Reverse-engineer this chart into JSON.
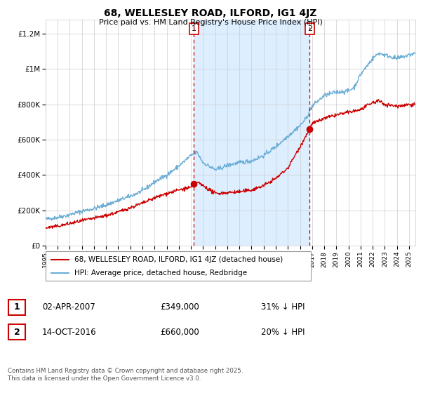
{
  "title": "68, WELLESLEY ROAD, ILFORD, IG1 4JZ",
  "subtitle": "Price paid vs. HM Land Registry's House Price Index (HPI)",
  "ylabel_ticks": [
    "£0",
    "£200K",
    "£400K",
    "£600K",
    "£800K",
    "£1M",
    "£1.2M"
  ],
  "ytick_values": [
    0,
    200000,
    400000,
    600000,
    800000,
    1000000,
    1200000
  ],
  "ylim": [
    0,
    1280000
  ],
  "xlim_start": 1995,
  "xlim_end": 2025.5,
  "sale1_date": 2007.25,
  "sale1_price": 349000,
  "sale1_label": "1",
  "sale2_date": 2016.8,
  "sale2_price": 660000,
  "sale2_label": "2",
  "legend_line1": "68, WELLESLEY ROAD, ILFORD, IG1 4JZ (detached house)",
  "legend_line2": "HPI: Average price, detached house, Redbridge",
  "table_row1_num": "1",
  "table_row1_date": "02-APR-2007",
  "table_row1_price": "£349,000",
  "table_row1_hpi": "31% ↓ HPI",
  "table_row2_num": "2",
  "table_row2_date": "14-OCT-2016",
  "table_row2_price": "£660,000",
  "table_row2_hpi": "20% ↓ HPI",
  "footer": "Contains HM Land Registry data © Crown copyright and database right 2025.\nThis data is licensed under the Open Government Licence v3.0.",
  "hpi_color": "#6baed6",
  "price_color": "#cc0000",
  "shade_color": "#ddeeff",
  "vline_color": "#cc0000",
  "background_color": "#ffffff",
  "grid_color": "#cccccc",
  "hpi_anchors_x": [
    1995,
    1996,
    1997,
    1998,
    1999,
    2000,
    2001,
    2002,
    2003,
    2004,
    2005,
    2006,
    2007,
    2007.5,
    2008,
    2009,
    2009.5,
    2010,
    2011,
    2012,
    2013,
    2014,
    2015,
    2016,
    2016.5,
    2017,
    2018,
    2019,
    2020,
    2020.5,
    2021,
    2022,
    2022.5,
    2023,
    2024,
    2025,
    2025.5
  ],
  "hpi_anchors_y": [
    150000,
    160000,
    175000,
    195000,
    210000,
    230000,
    255000,
    280000,
    310000,
    360000,
    400000,
    450000,
    510000,
    530000,
    470000,
    430000,
    440000,
    455000,
    470000,
    480000,
    510000,
    560000,
    620000,
    680000,
    720000,
    790000,
    850000,
    870000,
    875000,
    900000,
    970000,
    1060000,
    1090000,
    1080000,
    1060000,
    1080000,
    1090000
  ],
  "price_anchors_x": [
    1995,
    1996,
    1997,
    1998,
    1999,
    2000,
    2001,
    2002,
    2003,
    2004,
    2005,
    2006,
    2007,
    2007.25,
    2007.5,
    2008,
    2009,
    2010,
    2011,
    2012,
    2013,
    2014,
    2015,
    2016,
    2016.8,
    2017,
    2018,
    2019,
    2020,
    2021,
    2022,
    2022.5,
    2023,
    2024,
    2025,
    2025.5
  ],
  "price_anchors_y": [
    100000,
    110000,
    125000,
    140000,
    155000,
    170000,
    190000,
    215000,
    240000,
    270000,
    295000,
    315000,
    330000,
    349000,
    360000,
    340000,
    295000,
    300000,
    305000,
    315000,
    340000,
    380000,
    440000,
    560000,
    660000,
    690000,
    720000,
    740000,
    755000,
    770000,
    810000,
    820000,
    800000,
    790000,
    800000,
    800000
  ],
  "noise_hpi": 6000,
  "noise_price": 5000,
  "random_seed": 42
}
